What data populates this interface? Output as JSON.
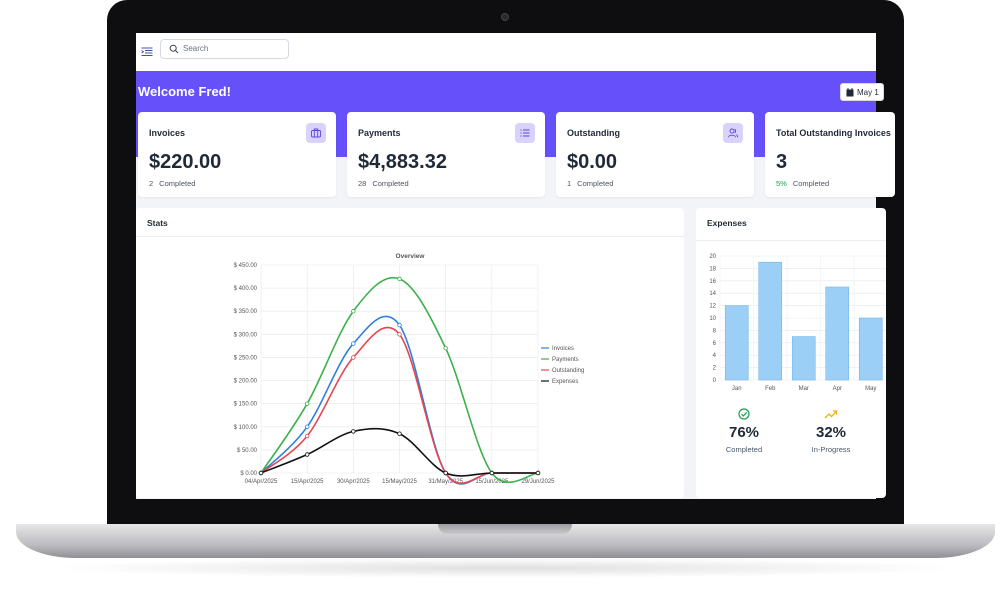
{
  "topbar": {
    "search_placeholder": "Search"
  },
  "banner": {
    "welcome": "Welcome Fred!",
    "date_label": "May 1"
  },
  "cards": [
    {
      "title": "Invoices",
      "value": "$220.00",
      "count": "2",
      "count_label": "Completed",
      "icon": "briefcase-icon"
    },
    {
      "title": "Payments",
      "value": "$4,883.32",
      "count": "28",
      "count_label": "Completed",
      "icon": "list-icon"
    },
    {
      "title": "Outstanding",
      "value": "$0.00",
      "count": "1",
      "count_label": "Completed",
      "icon": "users-icon"
    },
    {
      "title": "Total Outstanding Invoices",
      "value": "3",
      "count": "5%",
      "count_label": "Completed"
    }
  ],
  "stats": {
    "title": "Stats"
  },
  "expenses": {
    "title": "Expenses",
    "kpis": [
      {
        "value": "76%",
        "label": "Completed",
        "icon": "check-circle-icon",
        "color": "#16a34a"
      },
      {
        "value": "32%",
        "label": "In-Progress",
        "icon": "trending-up-icon",
        "color": "#eab308"
      }
    ]
  },
  "chart_data": [
    {
      "type": "line",
      "title": "Overview",
      "x": [
        "04/Apr/2025",
        "15/Apr/2025",
        "30/Apr/2025",
        "15/May/2025",
        "31/May/2025",
        "15/Jun/2025",
        "29/Jun/2025"
      ],
      "y_ticks": [
        "$ 0.00",
        "$ 50.00",
        "$ 100.00",
        "$ 150.00",
        "$ 200.00",
        "$ 250.00",
        "$ 300.00",
        "$ 350.00",
        "$ 400.00",
        "$ 450.00"
      ],
      "ylim": [
        0,
        450
      ],
      "grid": true,
      "legend_position": "right",
      "series": [
        {
          "name": "Invoices",
          "color": "#2f7fe0",
          "values": [
            0,
            100,
            280,
            320,
            0,
            0,
            0
          ]
        },
        {
          "name": "Payments",
          "color": "#3bb04a",
          "values": [
            0,
            150,
            350,
            420,
            270,
            0,
            0
          ]
        },
        {
          "name": "Outstanding",
          "color": "#e5474f",
          "values": [
            0,
            80,
            250,
            300,
            0,
            0,
            0
          ]
        },
        {
          "name": "Expenses",
          "color": "#111111",
          "values": [
            0,
            40,
            90,
            85,
            0,
            0,
            0
          ]
        }
      ]
    },
    {
      "type": "bar",
      "categories": [
        "Jan",
        "Feb",
        "Mar",
        "Apr",
        "May"
      ],
      "values": [
        12,
        19,
        7,
        15,
        10
      ],
      "y_ticks": [
        "0",
        "2",
        "4",
        "6",
        "8",
        "10",
        "12",
        "14",
        "16",
        "18",
        "20"
      ],
      "ylim": [
        0,
        20
      ],
      "color": "#9ccff5",
      "grid": true
    }
  ]
}
